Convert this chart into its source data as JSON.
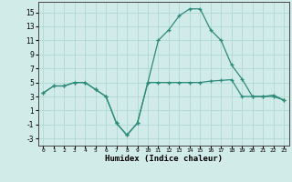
{
  "title": "",
  "xlabel": "Humidex (Indice chaleur)",
  "x_values": [
    0,
    1,
    2,
    3,
    4,
    5,
    6,
    7,
    8,
    9,
    10,
    11,
    12,
    13,
    14,
    15,
    16,
    17,
    18,
    19,
    20,
    21,
    22,
    23
  ],
  "line1": [
    3.5,
    4.5,
    4.5,
    5.0,
    5.0,
    4.0,
    3.0,
    -0.8,
    -2.5,
    -0.8,
    5.0,
    11.0,
    12.5,
    14.5,
    15.5,
    15.5,
    12.5,
    11.0,
    7.5,
    5.5,
    3.0,
    3.0,
    3.0,
    2.5
  ],
  "line2": [
    3.5,
    4.5,
    4.5,
    5.0,
    5.0,
    4.0,
    3.0,
    -0.8,
    -2.5,
    -0.8,
    5.0,
    5.0,
    5.0,
    5.0,
    5.0,
    5.0,
    5.2,
    5.3,
    5.4,
    3.0,
    3.0,
    3.0,
    3.2,
    2.5
  ],
  "line_color": "#2e8b7a",
  "bg_color": "#d0ebe8",
  "grid_color": "#afd8d4",
  "ylim": [
    -4,
    16.5
  ],
  "xlim": [
    -0.5,
    23.5
  ],
  "yticks": [
    -3,
    -1,
    1,
    3,
    5,
    7,
    9,
    11,
    13,
    15
  ],
  "xticks": [
    0,
    1,
    2,
    3,
    4,
    5,
    6,
    7,
    8,
    9,
    10,
    11,
    12,
    13,
    14,
    15,
    16,
    17,
    18,
    19,
    20,
    21,
    22,
    23
  ]
}
